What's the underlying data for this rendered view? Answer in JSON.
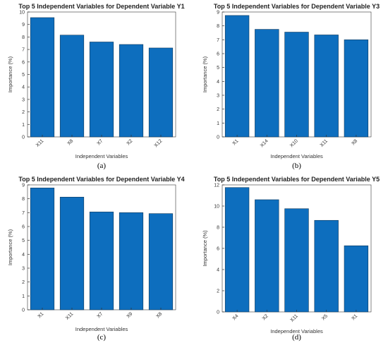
{
  "colors": {
    "bar": "#0d6ebe",
    "bar_edge": "#123a5c"
  },
  "chart_data": [
    {
      "type": "bar",
      "title": "Top 5 Independent Variables for Dependent Variable Y1",
      "xlabel": "Independent Variables",
      "ylabel": "Importance (%)",
      "categories": [
        "X11",
        "X8",
        "X7",
        "X2",
        "X12"
      ],
      "values": [
        9.55,
        8.15,
        7.6,
        7.4,
        7.12
      ],
      "ylim": [
        0,
        10
      ],
      "yticks": [
        0,
        1,
        2,
        3,
        4,
        5,
        6,
        7,
        8,
        9,
        10
      ],
      "panel_label": "(a)"
    },
    {
      "type": "bar",
      "title": "Top 5 Independent Variables for Dependent Variable Y3",
      "xlabel": "Independent Variables",
      "ylabel": "Importance (%)",
      "categories": [
        "X1",
        "X14",
        "X10",
        "X11",
        "X8"
      ],
      "values": [
        8.75,
        7.75,
        7.55,
        7.35,
        7.0
      ],
      "ylim": [
        0,
        9
      ],
      "yticks": [
        0,
        1,
        2,
        3,
        4,
        5,
        6,
        7,
        8,
        9
      ],
      "panel_label": "(b)"
    },
    {
      "type": "bar",
      "title": "Top 5 Independent Variables for Dependent Variable Y4",
      "xlabel": "Independent Variables",
      "ylabel": "Importance (%)",
      "categories": [
        "X1",
        "X11",
        "X7",
        "X9",
        "X8"
      ],
      "values": [
        8.78,
        8.12,
        7.05,
        7.0,
        6.93
      ],
      "ylim": [
        0,
        9
      ],
      "yticks": [
        0,
        1,
        2,
        3,
        4,
        5,
        6,
        7,
        8,
        9
      ],
      "panel_label": "(c)"
    },
    {
      "type": "bar",
      "title": "Top 5 Independent Variables for Dependent Variable Y5",
      "xlabel": "Independent Variables",
      "ylabel": "Importance (%)",
      "categories": [
        "X4",
        "X2",
        "X11",
        "X5",
        "X1"
      ],
      "values": [
        11.75,
        10.6,
        9.75,
        8.65,
        6.25
      ],
      "ylim": [
        0,
        12
      ],
      "yticks": [
        0,
        2,
        4,
        6,
        8,
        10,
        12
      ],
      "panel_label": "(d)"
    }
  ]
}
